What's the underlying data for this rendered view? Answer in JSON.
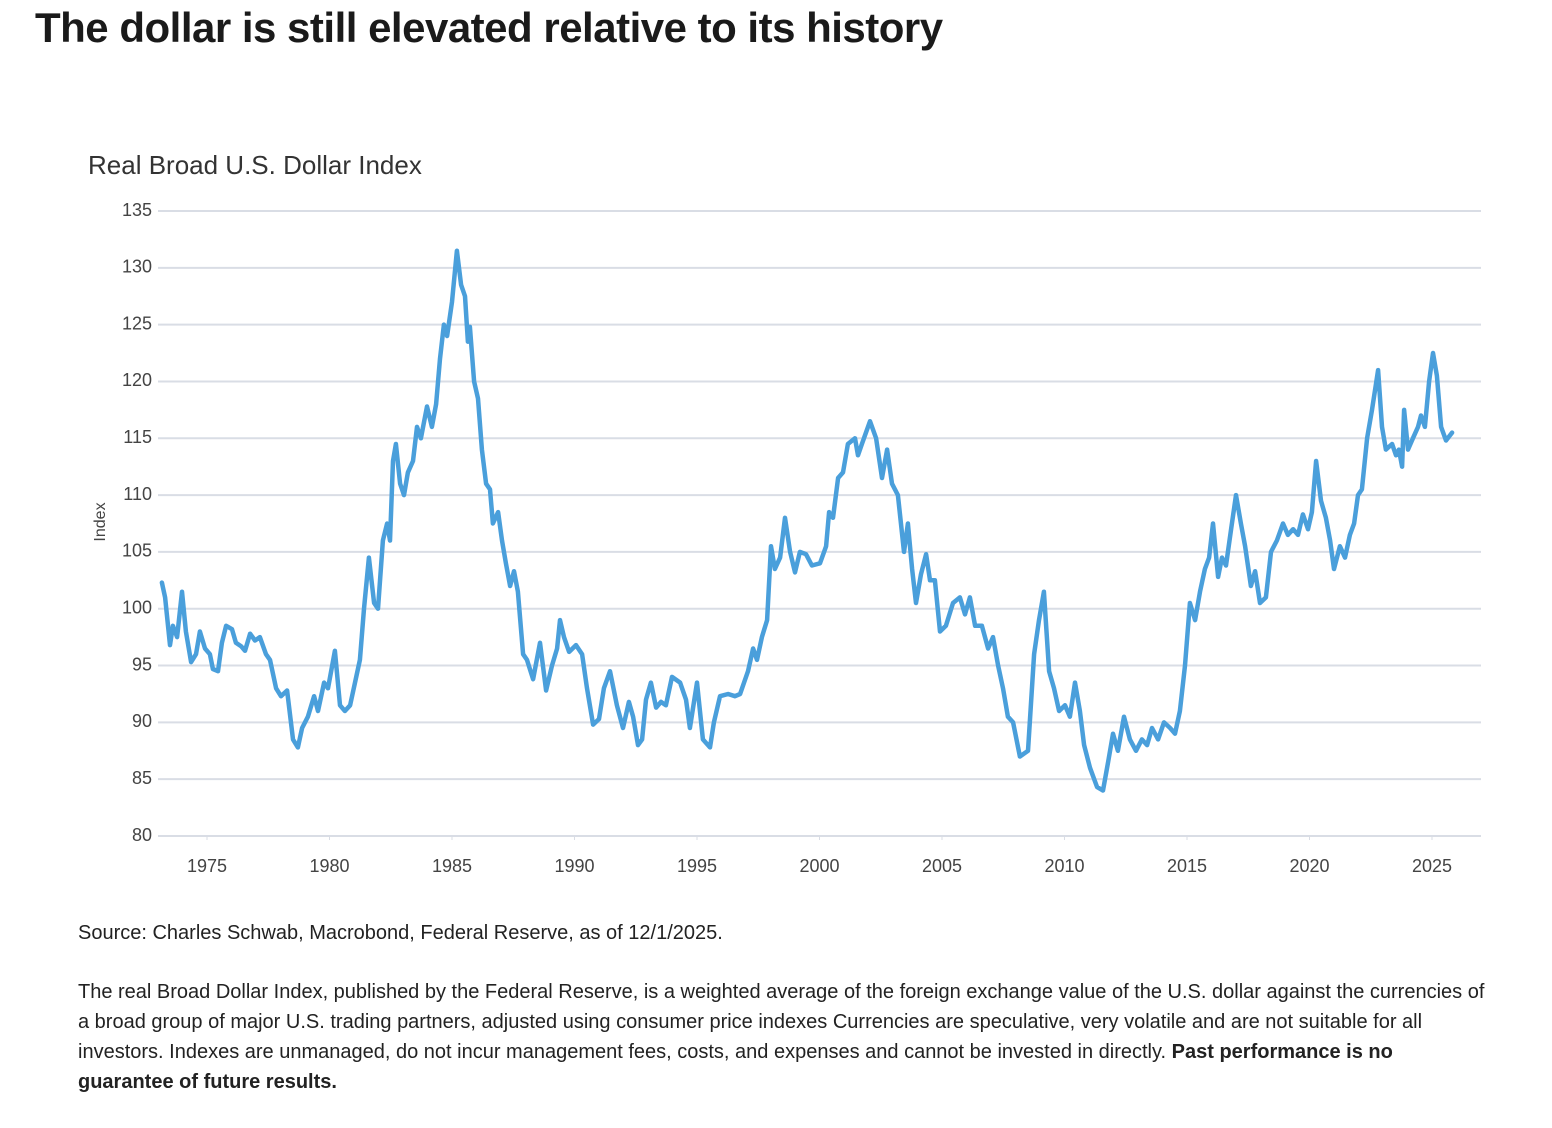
{
  "title": "The dollar is still elevated relative to its history",
  "chart_data": {
    "type": "line",
    "title": "Real Broad U.S. Dollar Index",
    "y_label": "Index",
    "color": "#4a9fdb",
    "grid": true,
    "xlim": [
      1973,
      2027
    ],
    "xticks": [
      1975,
      1980,
      1985,
      1990,
      1995,
      2000,
      2005,
      2010,
      2015,
      2020,
      2025
    ],
    "ylim": [
      80,
      135
    ],
    "yticks": [
      80,
      85,
      90,
      95,
      100,
      105,
      110,
      115,
      120,
      125,
      130,
      135
    ],
    "x": [
      1973.16,
      1973.29,
      1973.49,
      1973.61,
      1973.78,
      1973.98,
      1974.14,
      1974.35,
      1974.55,
      1974.71,
      1974.92,
      1975.12,
      1975.24,
      1975.45,
      1975.61,
      1975.78,
      1976.02,
      1976.18,
      1976.39,
      1976.55,
      1976.76,
      1976.96,
      1977.16,
      1977.41,
      1977.57,
      1977.82,
      1978.02,
      1978.27,
      1978.51,
      1978.71,
      1978.88,
      1979.12,
      1979.37,
      1979.53,
      1979.78,
      1979.94,
      1980.22,
      1980.43,
      1980.63,
      1980.84,
      1981.04,
      1981.24,
      1981.41,
      1981.61,
      1981.82,
      1981.98,
      1982.18,
      1982.35,
      1982.47,
      1982.59,
      1982.71,
      1982.88,
      1983.04,
      1983.2,
      1983.41,
      1983.57,
      1983.73,
      1983.98,
      1984.18,
      1984.35,
      1984.51,
      1984.67,
      1984.8,
      1985,
      1985.2,
      1985.37,
      1985.53,
      1985.65,
      1985.73,
      1985.9,
      1986.06,
      1986.22,
      1986.39,
      1986.55,
      1986.67,
      1986.88,
      1987.04,
      1987.2,
      1987.37,
      1987.53,
      1987.69,
      1987.9,
      1988.06,
      1988.31,
      1988.59,
      1988.84,
      1989.08,
      1989.29,
      1989.41,
      1989.57,
      1989.78,
      1990.06,
      1990.31,
      1990.51,
      1990.76,
      1991,
      1991.2,
      1991.45,
      1991.73,
      1991.98,
      1992.22,
      1992.39,
      1992.59,
      1992.76,
      1992.92,
      1993.12,
      1993.33,
      1993.53,
      1993.73,
      1993.98,
      1994.31,
      1994.55,
      1994.71,
      1995,
      1995.24,
      1995.53,
      1995.69,
      1995.94,
      1996.27,
      1996.55,
      1996.76,
      1997.08,
      1997.29,
      1997.45,
      1997.65,
      1997.86,
      1998.02,
      1998.18,
      1998.39,
      1998.59,
      1998.8,
      1999,
      1999.2,
      1999.45,
      1999.69,
      2000.02,
      2000.27,
      2000.39,
      2000.55,
      2000.76,
      2000.96,
      2001.16,
      2001.45,
      2001.57,
      2001.73,
      2002.06,
      2002.31,
      2002.55,
      2002.76,
      2002.96,
      2003.2,
      2003.45,
      2003.61,
      2003.78,
      2003.94,
      2004.14,
      2004.35,
      2004.51,
      2004.71,
      2004.92,
      2005.16,
      2005.45,
      2005.73,
      2005.94,
      2006.14,
      2006.35,
      2006.63,
      2006.88,
      2007.08,
      2007.29,
      2007.49,
      2007.69,
      2007.9,
      2008.18,
      2008.51,
      2008.76,
      2008.96,
      2009.16,
      2009.37,
      2009.57,
      2009.78,
      2010.02,
      2010.22,
      2010.43,
      2010.63,
      2010.8,
      2011.04,
      2011.33,
      2011.57,
      2011.78,
      2011.98,
      2012.18,
      2012.43,
      2012.67,
      2012.92,
      2013.16,
      2013.37,
      2013.57,
      2013.82,
      2014.06,
      2014.31,
      2014.51,
      2014.71,
      2014.92,
      2015.12,
      2015.33,
      2015.53,
      2015.73,
      2015.9,
      2016.06,
      2016.27,
      2016.43,
      2016.59,
      2016.8,
      2017,
      2017.2,
      2017.37,
      2017.61,
      2017.78,
      2017.98,
      2018.22,
      2018.43,
      2018.67,
      2018.92,
      2019.12,
      2019.33,
      2019.53,
      2019.73,
      2019.94,
      2020.1,
      2020.27,
      2020.47,
      2020.67,
      2020.84,
      2021,
      2021.24,
      2021.45,
      2021.65,
      2021.82,
      2021.98,
      2022.14,
      2022.35,
      2022.55,
      2022.8,
      2022.96,
      2023.12,
      2023.37,
      2023.53,
      2023.65,
      2023.78,
      2023.86,
      2024.02,
      2024.22,
      2024.43,
      2024.55,
      2024.71,
      2024.88,
      2025.04,
      2025.2,
      2025.37,
      2025.57,
      2025.82
    ],
    "values": [
      102.3,
      101,
      96.8,
      98.5,
      97.5,
      101.5,
      98,
      95.3,
      96,
      98,
      96.5,
      96,
      94.7,
      94.5,
      97,
      98.5,
      98.2,
      97,
      96.7,
      96.3,
      97.8,
      97.2,
      97.5,
      96,
      95.5,
      93,
      92.3,
      92.8,
      88.5,
      87.8,
      89.5,
      90.5,
      92.3,
      91,
      93.5,
      93,
      96.3,
      91.5,
      91,
      91.5,
      93.5,
      95.5,
      100,
      104.5,
      100.5,
      100,
      106,
      107.5,
      106,
      113,
      114.5,
      111,
      110,
      112,
      113,
      116,
      115,
      117.8,
      116,
      118,
      122,
      125,
      124,
      127,
      131.5,
      128.5,
      127.5,
      123.5,
      124.8,
      120,
      118.5,
      114,
      111,
      110.5,
      107.5,
      108.5,
      106,
      104,
      102,
      103.3,
      101.5,
      96,
      95.5,
      93.8,
      97,
      92.8,
      95,
      96.5,
      99,
      97.5,
      96.2,
      96.8,
      96,
      93,
      89.8,
      90.3,
      93,
      94.5,
      91.5,
      89.5,
      91.8,
      90.5,
      88,
      88.5,
      92,
      93.5,
      91.3,
      91.8,
      91.5,
      94,
      93.5,
      92,
      89.5,
      93.5,
      88.5,
      87.8,
      90,
      92.3,
      92.5,
      92.3,
      92.5,
      94.5,
      96.5,
      95.5,
      97.5,
      99,
      105.5,
      103.5,
      104.5,
      108,
      105,
      103.2,
      105,
      104.8,
      103.8,
      104,
      105.5,
      108.5,
      108,
      111.5,
      112,
      114.5,
      115,
      113.5,
      114.5,
      116.5,
      115,
      111.5,
      114,
      111,
      110,
      105,
      107.5,
      103.5,
      100.5,
      103,
      104.8,
      102.5,
      102.5,
      98,
      98.5,
      100.5,
      101,
      99.5,
      101,
      98.5,
      98.5,
      96.5,
      97.5,
      95,
      93,
      90.5,
      90,
      87,
      87.5,
      96,
      99,
      101.5,
      94.5,
      93,
      91,
      91.5,
      90.5,
      93.5,
      91,
      88,
      86,
      84.3,
      84,
      86.5,
      89,
      87.5,
      90.5,
      88.5,
      87.5,
      88.5,
      88,
      89.5,
      88.5,
      90,
      89.5,
      89,
      91,
      95,
      100.5,
      99,
      101.5,
      103.5,
      104.5,
      107.5,
      102.8,
      104.5,
      103.8,
      107,
      110,
      107.5,
      105.5,
      102,
      103.3,
      100.5,
      101,
      105,
      106,
      107.5,
      106.5,
      107,
      106.5,
      108.3,
      107,
      108.5,
      113,
      109.5,
      108,
      106,
      103.5,
      105.5,
      104.5,
      106.5,
      107.5,
      110,
      110.5,
      115,
      117.5,
      121,
      116,
      114,
      114.5,
      113.5,
      114,
      112.5,
      117.5,
      114,
      115,
      116,
      117,
      116,
      120,
      122.5,
      120.5,
      116,
      114.8,
      115.5
    ]
  },
  "notes": {
    "source": "Source: Charles Schwab, Macrobond, Federal Reserve, as of 12/1/2025.",
    "disclaimer": "The real Broad Dollar Index, published by the Federal Reserve, is a weighted average of the foreign exchange value of the U.S. dollar against the currencies of a broad group of major U.S. trading partners, adjusted using consumer price indexes Currencies are speculative, very volatile and are not suitable for all investors. Indexes are unmanaged, do not incur management fees, costs, and expenses and cannot be invested in directly.",
    "disclaimer_bold": "Past performance is no guarantee of future results."
  }
}
